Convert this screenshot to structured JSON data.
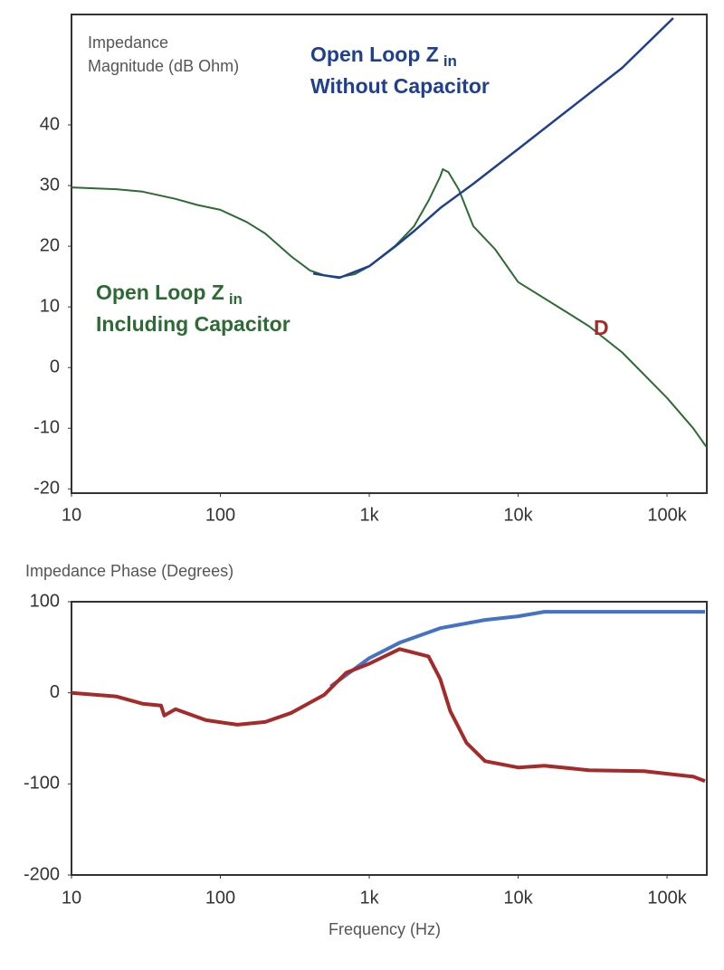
{
  "chart_data": [
    {
      "type": "line",
      "xscale": "log",
      "ylabel": [
        "Impedance",
        "Magnitude (dB Ohm)"
      ],
      "xlim": [
        10,
        185000
      ],
      "ylim": [
        -20.7,
        58.2
      ],
      "xticks": [
        10,
        100,
        {
          "value": 1000,
          "label": "1k"
        },
        {
          "value": 10000,
          "label": "10k"
        },
        {
          "value": 100000,
          "label": "100k"
        }
      ],
      "yticks": [
        -20,
        -10,
        0,
        10,
        20,
        30,
        40
      ],
      "series": [
        {
          "color": "#2e6b34",
          "x": [
            10,
            20,
            30,
            50,
            70,
            100,
            150,
            200,
            300,
            400,
            500,
            630,
            800,
            1000,
            1500,
            2000,
            2500,
            3000,
            3120,
            3400,
            4000,
            5000,
            7000,
            10000,
            20000,
            30000,
            50000,
            100000,
            150000,
            183000
          ],
          "values": [
            29.7,
            29.4,
            29,
            27.8,
            26.8,
            26,
            24,
            22.1,
            18.3,
            16,
            15.2,
            14.9,
            15.4,
            16.7,
            20.1,
            23.3,
            27.5,
            31.5,
            32.7,
            32.2,
            29.3,
            23.3,
            19.5,
            14.1,
            9.5,
            6.8,
            2.5,
            -5,
            -10,
            -13
          ]
        },
        {
          "color": "#1f3f8f",
          "x": [
            420,
            630,
            1000,
            1500,
            2000,
            3000,
            5000,
            10000,
            20000,
            50000,
            110000
          ],
          "values": [
            15.5,
            14.8,
            16.7,
            20,
            22.5,
            26.3,
            30.3,
            36,
            41.8,
            49.4,
            57.6
          ]
        }
      ],
      "annotations": [
        {
          "text": "Open Loop Z",
          "subscript": "in",
          "color": "#1f3f8f"
        },
        {
          "text": "Without Capacitor",
          "color": "#1f3f8f"
        },
        {
          "text": "Open Loop Z",
          "subscript": "in",
          "color": "#2e6b34"
        },
        {
          "text": "Including Capacitor",
          "color": "#2e6b34"
        },
        {
          "text": "D",
          "color": "#a52a2a"
        }
      ]
    },
    {
      "type": "line",
      "xscale": "log",
      "ylabel": "Impedance Phase (Degrees)",
      "xlabel": "Frequency (Hz)",
      "xlim": [
        10,
        185000
      ],
      "ylim": [
        -200,
        100
      ],
      "xticks": [
        10,
        100,
        {
          "value": 1000,
          "label": "1k"
        },
        {
          "value": 10000,
          "label": "10k"
        },
        {
          "value": 100000,
          "label": "100k"
        }
      ],
      "yticks": [
        -200,
        -100,
        0,
        100
      ],
      "series": [
        {
          "color": "#4472c4",
          "x": [
            550,
            1000,
            1600,
            3000,
            6000,
            10000,
            15000,
            30000,
            180000
          ],
          "values": [
            7,
            38,
            55,
            71,
            80,
            84,
            89,
            89,
            89
          ]
        },
        {
          "color": "#a52a2a",
          "x": [
            10,
            20,
            30,
            40,
            42,
            50,
            80,
            130,
            200,
            300,
            500,
            700,
            1000,
            1600,
            2500,
            3000,
            3500,
            4500,
            6000,
            10000,
            15000,
            30000,
            70000,
            150000,
            180000
          ],
          "values": [
            0,
            -4,
            -12,
            -14,
            -25,
            -18,
            -30,
            -35,
            -32,
            -22,
            -2,
            22,
            32,
            48,
            40,
            15,
            -20,
            -55,
            -75,
            -82,
            -80,
            -85,
            -86,
            -92,
            -97
          ]
        }
      ]
    }
  ]
}
